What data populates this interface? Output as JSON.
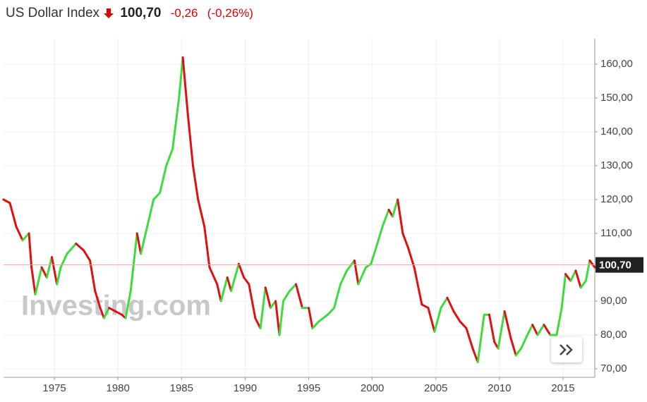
{
  "chart_data": {
    "type": "line",
    "title": "US Dollar Index",
    "last_price": {
      "value": 100.7,
      "label": "100,70"
    },
    "change": "-0,26",
    "change_pct": "(-0,26%)",
    "watermark": "Investing.com",
    "up_color": "#3ddc3d",
    "down_color": "#e01010",
    "price_line_color": "#f4a0a0",
    "grid": true,
    "xlim": [
      1971.0,
      2017.5
    ],
    "ylim": [
      67.5,
      167.5
    ],
    "xticks": [
      1975,
      1980,
      1985,
      1990,
      1995,
      2000,
      2005,
      2010,
      2015
    ],
    "yticks": [
      {
        "value": 70,
        "label": "70,00"
      },
      {
        "value": 80,
        "label": "80,00"
      },
      {
        "value": 90,
        "label": "90,00"
      },
      {
        "value": 100,
        "label": "100,00"
      },
      {
        "value": 110,
        "label": "110,00"
      },
      {
        "value": 120,
        "label": "120,00"
      },
      {
        "value": 130,
        "label": "130,00"
      },
      {
        "value": 140,
        "label": "140,00"
      },
      {
        "value": 150,
        "label": "150,00"
      },
      {
        "value": 160,
        "label": "160,00"
      }
    ],
    "x": [
      1971.0,
      1971.5,
      1972,
      1972.5,
      1973.0,
      1973.2,
      1973.5,
      1974,
      1974.4,
      1974.8,
      1975.2,
      1975.5,
      1976,
      1976.7,
      1977.3,
      1977.8,
      1978.2,
      1978.6,
      1978.9,
      1979.3,
      1979.8,
      1980.3,
      1980.6,
      1981,
      1981.5,
      1981.8,
      1982.3,
      1982.8,
      1983.3,
      1983.8,
      1984.3,
      1984.8,
      1985.1,
      1985.5,
      1985.9,
      1986.3,
      1986.8,
      1987.2,
      1987.8,
      1988.1,
      1988.6,
      1988.9,
      1989.5,
      1989.9,
      1990.3,
      1990.8,
      1991.2,
      1991.6,
      1992.0,
      1992.4,
      1992.7,
      1993.0,
      1993.5,
      1994.0,
      1994.5,
      1995.0,
      1995.3,
      1995.8,
      1996.5,
      1997.0,
      1997.5,
      1998.0,
      1998.6,
      1998.9,
      1999.5,
      1999.9,
      2000.4,
      2000.8,
      2001.3,
      2001.6,
      2002.0,
      2002.4,
      2002.8,
      2003.3,
      2003.9,
      2004.4,
      2004.9,
      2005.4,
      2005.9,
      2006.4,
      2006.9,
      2007.4,
      2007.9,
      2008.3,
      2008.8,
      2009.2,
      2009.6,
      2009.9,
      2010.4,
      2010.9,
      2011.3,
      2011.7,
      2012.2,
      2012.6,
      2013.0,
      2013.5,
      2014.0,
      2014.5,
      2014.9,
      2015.2,
      2015.6,
      2016.0,
      2016.4,
      2016.8,
      2017.1,
      2017.5
    ],
    "values": [
      120,
      119,
      112,
      108,
      110,
      100,
      92,
      100,
      97,
      103,
      95,
      100,
      104,
      107,
      105,
      102,
      93,
      88,
      85,
      88,
      87,
      86,
      85,
      93,
      110,
      104,
      112,
      120,
      122,
      130,
      135,
      150,
      162,
      145,
      130,
      120,
      112,
      100,
      95,
      90,
      97,
      93,
      101,
      97,
      95,
      85,
      82,
      94,
      88,
      90,
      80,
      90,
      93,
      95,
      88,
      88,
      82,
      84,
      86,
      88,
      95,
      99,
      102,
      95,
      100,
      101,
      107,
      112,
      117,
      115,
      120,
      110,
      106,
      100,
      89,
      88,
      81,
      88,
      91,
      87,
      84,
      82,
      76,
      72,
      86,
      86,
      78,
      76,
      87,
      79,
      74,
      76,
      80,
      83,
      80,
      83,
      80,
      80,
      88,
      98,
      96,
      99,
      94,
      96,
      102,
      100
    ]
  }
}
